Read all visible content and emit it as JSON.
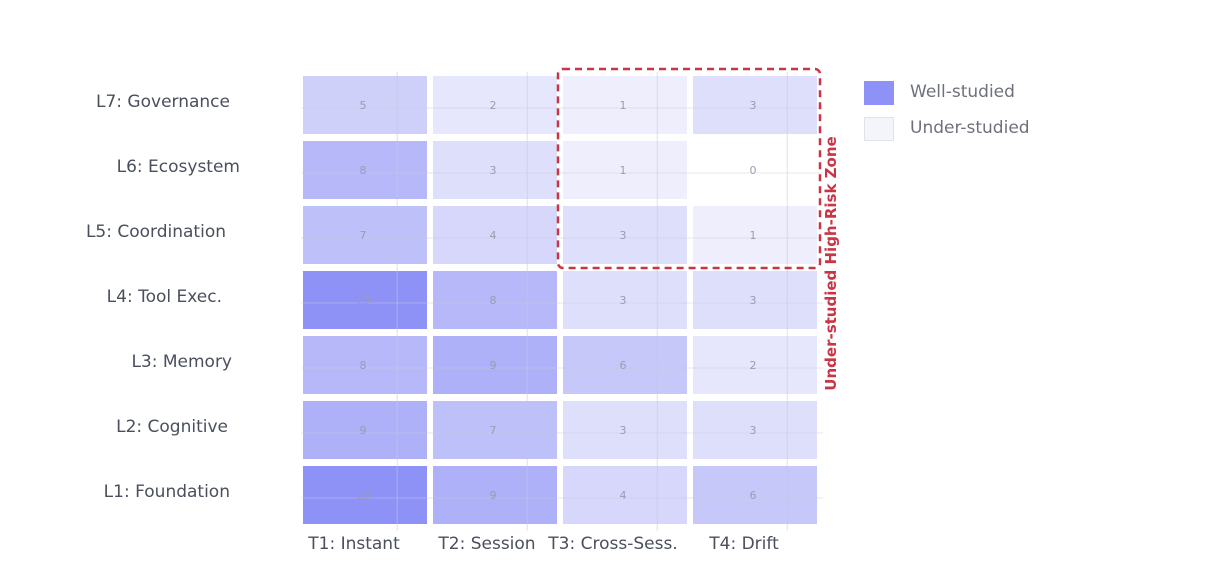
{
  "chart_data": {
    "type": "heatmap",
    "title": "",
    "xlabel": "",
    "ylabel": "",
    "rows": [
      "L7: Governance",
      "L6: Ecosystem",
      "L5: Coordination",
      "L4: Tool Exec.",
      "L3: Memory",
      "L2: Cognitive",
      "L1: Foundation"
    ],
    "columns": [
      "T1: Instant",
      "T2: Session",
      "T3: Cross-Sess.",
      "T4: Drift"
    ],
    "values": [
      [
        5,
        2,
        1,
        3
      ],
      [
        8,
        3,
        1,
        0
      ],
      [
        7,
        4,
        3,
        1
      ],
      [
        13,
        8,
        3,
        3
      ],
      [
        8,
        9,
        6,
        2
      ],
      [
        9,
        7,
        3,
        3
      ],
      [
        13,
        9,
        4,
        6
      ]
    ],
    "color_range": [
      0,
      13
    ],
    "color_low": "#f6f6fd",
    "color_high": "#8e92f6",
    "grid": true,
    "legend": {
      "placement": "top-right",
      "items": [
        {
          "label": "Well-studied",
          "color": "#8e92f6"
        },
        {
          "label": "Under-studied",
          "color": "#f4f4fb"
        }
      ]
    },
    "annotation": {
      "text": "Under-studied High-Risk Zone",
      "color": "#c93545",
      "rows": [
        "L7: Governance",
        "L6: Ecosystem",
        "L5: Coordination"
      ],
      "columns": [
        "T3: Cross-Sess.",
        "T4: Drift"
      ]
    }
  }
}
